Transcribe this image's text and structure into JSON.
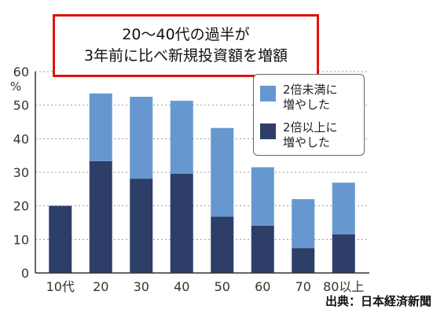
{
  "title": {
    "line1": "20～40代の過半が",
    "line2": "3年前に比べ新規投資額を増額"
  },
  "source": "出典：日本経済新聞",
  "colors": {
    "doubled_plus": "#6698cf",
    "increased_less_than_double": "#2d3e68",
    "title_border": "#e3120b",
    "grid": "#9a9a9a"
  },
  "chart_data": {
    "type": "bar",
    "stacked": true,
    "y_unit": "%",
    "ylim": [
      0,
      60
    ],
    "yticks": [
      0,
      10,
      20,
      30,
      40,
      50,
      60
    ],
    "grid": "dotted horizontal",
    "legend_position": "top-right",
    "categories": [
      "10代",
      "20",
      "30",
      "40",
      "50",
      "60",
      "70",
      "80以上"
    ],
    "series": [
      {
        "name": "2倍以上に\n増やした",
        "color": "#2d3e68",
        "values": [
          20,
          33.3,
          28.1,
          29.6,
          16.8,
          14.1,
          7.4,
          11.5
        ]
      },
      {
        "name": "2倍未満に\n増やした",
        "color": "#6698cf",
        "values": [
          0,
          20.2,
          24.4,
          21.7,
          26.4,
          17.4,
          14.6,
          15.4
        ]
      }
    ]
  }
}
